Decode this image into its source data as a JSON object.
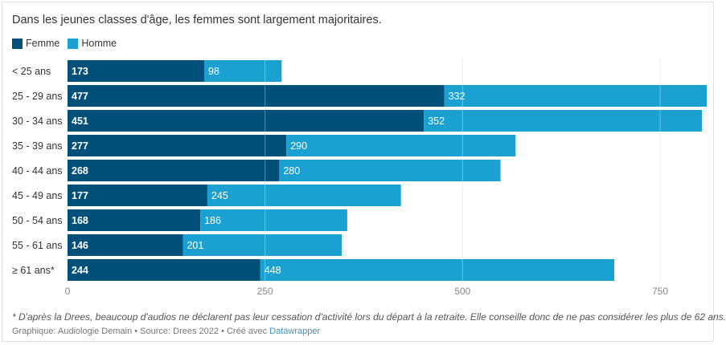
{
  "title": "Dans les jeunes classes d'âge, les femmes sont largement majoritaires.",
  "footnote": "* D'après la Drees, beaucoup d'audios ne déclarent pas leur cessation d'activité lors du départ à la retraite. Elle conseille donc de ne pas considérer les plus de 62 ans.",
  "credits": {
    "text": "Graphique: Audiologie Demain • Source: Drees 2022 • Créé avec ",
    "link": "Datawrapper"
  },
  "colors": {
    "femme": "#00507a",
    "homme": "#1aa1d2",
    "grid": "#e5e5e5",
    "label_text": "#ffffff"
  },
  "chart_data": {
    "type": "bar",
    "orientation": "horizontal",
    "stacked": true,
    "title": "Dans les jeunes classes d'âge, les femmes sont largement majoritaires.",
    "categories": [
      "< 25 ans",
      "25 - 29 ans",
      "30 - 34 ans",
      "35 - 39 ans",
      "40 - 44 ans",
      "45 - 49 ans",
      "50 - 54 ans",
      "55 - 61 ans",
      "≥ 61 ans*"
    ],
    "series": [
      {
        "name": "Femme",
        "values": [
          173,
          477,
          451,
          277,
          268,
          177,
          168,
          146,
          244
        ]
      },
      {
        "name": "Homme",
        "values": [
          98,
          332,
          352,
          290,
          280,
          245,
          186,
          201,
          448
        ]
      }
    ],
    "xticks": [
      0,
      250,
      500,
      750
    ],
    "xlim": [
      0,
      809
    ],
    "legend": "top-left",
    "grid": true
  }
}
